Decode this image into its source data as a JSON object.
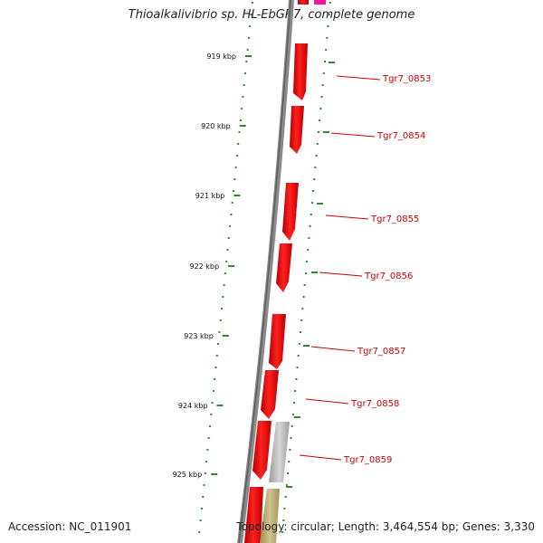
{
  "title": "Thioalkalivibrio sp. HL-EbGR7, complete genome",
  "accession": "Accession: NC_011901",
  "summary": "Topology: circular; Length: 3,464,554 bp; Genes: 3,330",
  "colors": {
    "backbone": "#777777",
    "gene_forward": "#ff1010",
    "gene_other": "#ff1493",
    "gene_grey": "#bdbdbd",
    "gene_olive": "#b8ab6a",
    "ticks": "#2e8b2e",
    "labels": "#cc0000"
  },
  "scale_ticks": [
    "919 kbp",
    "920 kbp",
    "921 kbp",
    "922 kbp",
    "923 kbp",
    "924 kbp",
    "925 kbp"
  ],
  "genes": [
    {
      "label": "Tgr7_0853",
      "track": "red"
    },
    {
      "label": "Tgr7_0854",
      "track": "red"
    },
    {
      "label": "Tgr7_0855",
      "track": "red"
    },
    {
      "label": "Tgr7_0856",
      "track": "red"
    },
    {
      "label": "Tgr7_0857",
      "track": "red"
    },
    {
      "label": "Tgr7_0858",
      "track": "red"
    },
    {
      "label": "Tgr7_0859",
      "track": "red"
    }
  ]
}
